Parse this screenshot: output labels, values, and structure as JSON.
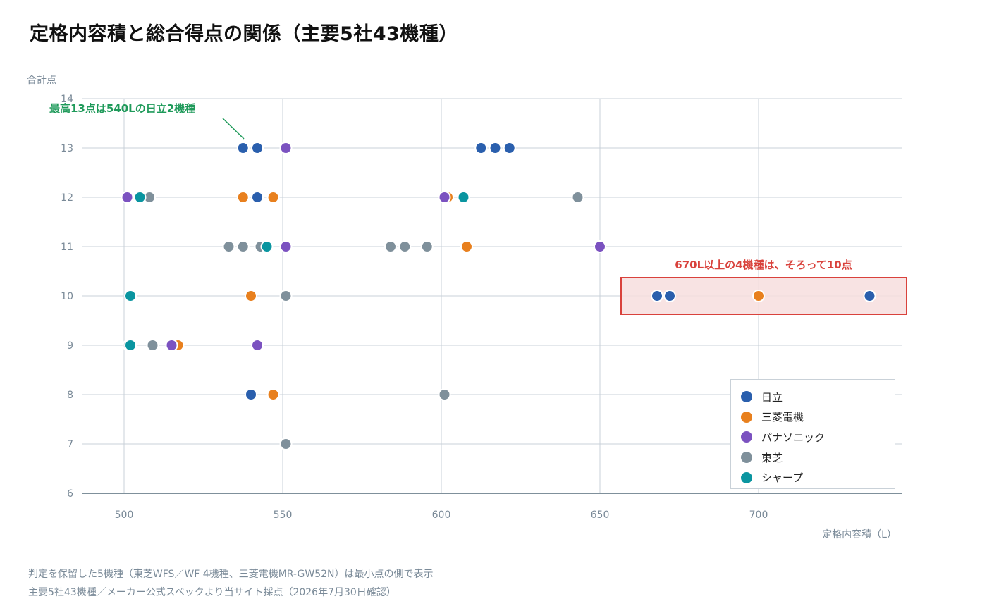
{
  "title": "定格内容積と総合得点の関係（主要5社43機種）",
  "notes": [
    "判定を保留した5機種（東芝WFS／WF 4機種、三菱電機MR-GW52N）は最小点の側で表示",
    "主要5社43機種／メーカー公式スペックより当サイト採点（2026年7月30日確認）"
  ],
  "chart_data": {
    "type": "scatter",
    "title": "定格内容積と総合得点の関係（主要5社43機種）",
    "xlabel": "定格内容積（L）",
    "ylabel": "合計点",
    "xlim": [
      487,
      735
    ],
    "ylim": [
      6,
      14
    ],
    "xticks": [
      500,
      550,
      600,
      650,
      700
    ],
    "yticks": [
      6,
      7,
      8,
      9,
      10,
      11,
      12,
      13,
      14
    ],
    "grid": true,
    "legend_position": "bottom-right",
    "series": [
      {
        "name": "日立",
        "color": "#2a5fad",
        "points": [
          [
            537.5,
            13
          ],
          [
            542,
            13
          ],
          [
            612.5,
            13
          ],
          [
            617,
            13
          ],
          [
            621.5,
            13
          ],
          [
            542,
            12
          ],
          [
            540,
            8
          ],
          [
            668,
            10
          ],
          [
            672,
            10
          ],
          [
            735,
            10
          ]
        ]
      },
      {
        "name": "三菱電機",
        "color": "#e8801e",
        "points": [
          [
            537.5,
            12
          ],
          [
            547,
            12
          ],
          [
            602,
            12
          ],
          [
            608,
            11
          ],
          [
            540,
            10
          ],
          [
            700,
            10
          ],
          [
            517,
            9
          ],
          [
            547,
            8
          ]
        ]
      },
      {
        "name": "パナソニック",
        "color": "#7b52c0",
        "points": [
          [
            551,
            13
          ],
          [
            501,
            12
          ],
          [
            601,
            12
          ],
          [
            551,
            11
          ],
          [
            650,
            11
          ],
          [
            515,
            9
          ],
          [
            542,
            9
          ]
        ]
      },
      {
        "name": "東芝",
        "color": "#7f909b",
        "points": [
          [
            508,
            12
          ],
          [
            643,
            12
          ],
          [
            533,
            11
          ],
          [
            537.5,
            11
          ],
          [
            543,
            11
          ],
          [
            584,
            11
          ],
          [
            588.5,
            11
          ],
          [
            595.5,
            11
          ],
          [
            551,
            10
          ],
          [
            501.5,
            9
          ],
          [
            509,
            9
          ],
          [
            601,
            8
          ],
          [
            551,
            7
          ]
        ]
      },
      {
        "name": "シャープ",
        "color": "#0a95a0",
        "points": [
          [
            505,
            12
          ],
          [
            607,
            12
          ],
          [
            545,
            11
          ],
          [
            502,
            10
          ],
          [
            502,
            9
          ]
        ]
      }
    ],
    "annotations": [
      {
        "text": "最高13点は540Lの日立2機種",
        "color": "#1f9a5a"
      },
      {
        "text": "670L以上の4機種は、そろって10点",
        "color": "#d9423c",
        "x_range": [
          655,
          735
        ],
        "y": 10
      }
    ]
  }
}
